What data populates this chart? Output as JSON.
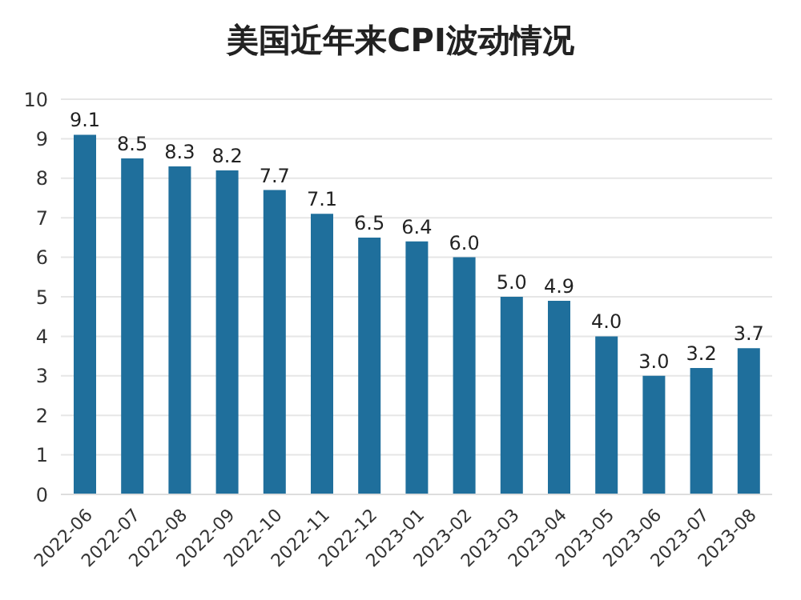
{
  "chart_data": {
    "type": "bar",
    "title": "美国近年来CPI波动情况",
    "categories": [
      "2022-06",
      "2022-07",
      "2022-08",
      "2022-09",
      "2022-10",
      "2022-11",
      "2022-12",
      "2023-01",
      "2023-02",
      "2023-03",
      "2023-04",
      "2023-05",
      "2023-06",
      "2023-07",
      "2023-08"
    ],
    "values": [
      9.1,
      8.5,
      8.3,
      8.2,
      7.7,
      7.1,
      6.5,
      6.4,
      6.0,
      5.0,
      4.9,
      4.0,
      3.0,
      3.2,
      3.7
    ],
    "value_labels": [
      "9.1",
      "8.5",
      "8.3",
      "8.2",
      "7.7",
      "7.1",
      "6.5",
      "6.4",
      "6.0",
      "5.0",
      "4.9",
      "4.0",
      "3.0",
      "3.2",
      "3.7"
    ],
    "color": "#1f6f9c",
    "ylim": [
      0,
      10
    ],
    "yticks": [
      0,
      1,
      2,
      3,
      4,
      5,
      6,
      7,
      8,
      9,
      10
    ],
    "grid": "y"
  }
}
